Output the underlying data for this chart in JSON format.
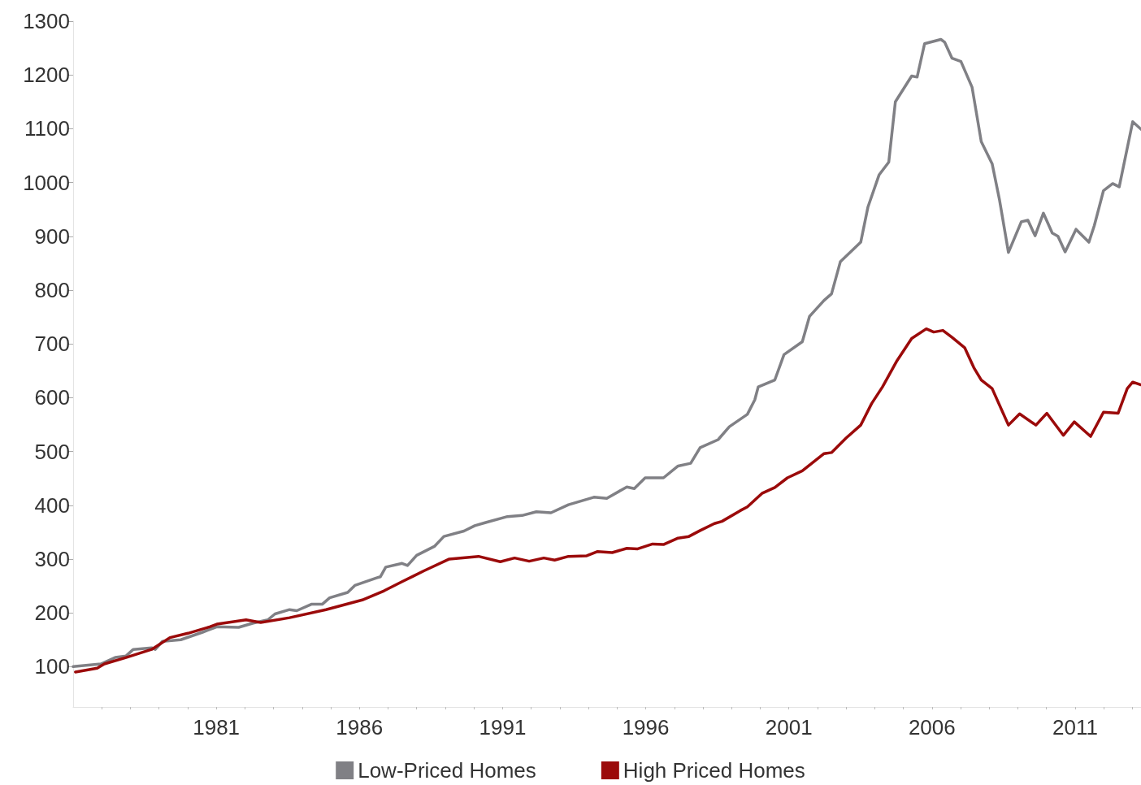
{
  "chart_data": {
    "type": "line",
    "legend": "bottom",
    "grid": false,
    "marker": "none",
    "line_style": "solid",
    "xlim": [
      1976,
      2013.3
    ],
    "ylim": [
      25,
      1300
    ],
    "yticks": [
      100,
      200,
      300,
      400,
      500,
      600,
      700,
      800,
      900,
      1000,
      1100,
      1200,
      1300
    ],
    "xticks": [
      {
        "value": 1977,
        "label": null
      },
      {
        "value": 1978,
        "label": null
      },
      {
        "value": 1979,
        "label": null
      },
      {
        "value": 1980,
        "label": null
      },
      {
        "value": 1981,
        "label": "1981"
      },
      {
        "value": 1982,
        "label": null
      },
      {
        "value": 1983,
        "label": null
      },
      {
        "value": 1984,
        "label": null
      },
      {
        "value": 1985,
        "label": null
      },
      {
        "value": 1986,
        "label": "1986"
      },
      {
        "value": 1987,
        "label": null
      },
      {
        "value": 1988,
        "label": null
      },
      {
        "value": 1989,
        "label": null
      },
      {
        "value": 1990,
        "label": null
      },
      {
        "value": 1991,
        "label": "1991"
      },
      {
        "value": 1992,
        "label": null
      },
      {
        "value": 1993,
        "label": null
      },
      {
        "value": 1994,
        "label": null
      },
      {
        "value": 1995,
        "label": null
      },
      {
        "value": 1996,
        "label": "1996"
      },
      {
        "value": 1997,
        "label": null
      },
      {
        "value": 1998,
        "label": null
      },
      {
        "value": 1999,
        "label": null
      },
      {
        "value": 2000,
        "label": null
      },
      {
        "value": 2001,
        "label": "2001"
      },
      {
        "value": 2002,
        "label": null
      },
      {
        "value": 2003,
        "label": null
      },
      {
        "value": 2004,
        "label": null
      },
      {
        "value": 2005,
        "label": null
      },
      {
        "value": 2006,
        "label": "2006"
      },
      {
        "value": 2007,
        "label": null
      },
      {
        "value": 2008,
        "label": null
      },
      {
        "value": 2009,
        "label": null
      },
      {
        "value": 2010,
        "label": null
      },
      {
        "value": 2011,
        "label": "2011"
      },
      {
        "value": 2012,
        "label": null
      },
      {
        "value": 2013,
        "label": null
      }
    ],
    "series": [
      {
        "name": "Low-Priced Homes",
        "color": "#808085",
        "x": [
          1976.0,
          1976.97,
          1977.47,
          1977.85,
          1978.1,
          1978.74,
          1978.87,
          1979.12,
          1979.76,
          1980.52,
          1981.02,
          1981.78,
          1982.29,
          1982.8,
          1983.05,
          1983.56,
          1983.81,
          1984.32,
          1984.7,
          1984.96,
          1985.59,
          1985.84,
          1986.6,
          1986.73,
          1986.92,
          1987.49,
          1987.68,
          1988.0,
          1988.63,
          1988.95,
          1989.65,
          1990.03,
          1990.41,
          1991.17,
          1991.68,
          1992.18,
          1992.69,
          1993.3,
          1994.19,
          1994.64,
          1995.34,
          1995.6,
          1995.98,
          1996.62,
          1997.13,
          1997.57,
          1997.9,
          1998.53,
          1998.92,
          1999.55,
          1999.81,
          1999.93,
          2000.51,
          2000.83,
          2001.47,
          2001.72,
          2002.23,
          2002.49,
          2002.8,
          2003.51,
          2003.76,
          2004.15,
          2004.49,
          2004.72,
          2005.29,
          2005.48,
          2005.74,
          2006.31,
          2006.44,
          2006.7,
          2007.01,
          2007.4,
          2007.72,
          2008.1,
          2008.36,
          2008.67,
          2009.12,
          2009.35,
          2009.6,
          2009.89,
          2010.2,
          2010.4,
          2010.65,
          2011.03,
          2011.48,
          2011.67,
          2011.99,
          2012.31,
          2012.54,
          2013.01,
          2013.3
        ],
        "values": [
          100,
          105,
          117,
          120,
          132,
          135,
          132,
          147,
          150,
          164,
          174,
          173,
          181,
          187,
          198,
          206,
          204,
          216,
          216,
          228,
          238,
          251,
          265,
          267,
          285,
          292,
          288,
          307,
          324,
          342,
          352,
          362,
          368,
          379,
          381,
          388,
          386,
          401,
          415,
          413,
          434,
          431,
          451,
          451,
          473,
          478,
          507,
          522,
          546,
          569,
          596,
          620,
          633,
          680,
          704,
          751,
          781,
          793,
          853,
          889,
          954,
          1014,
          1038,
          1150,
          1198,
          1196,
          1258,
          1266,
          1261,
          1231,
          1225,
          1177,
          1076,
          1035,
          967,
          870,
          927,
          930,
          901,
          943,
          906,
          900,
          871,
          913,
          889,
          920,
          985,
          998,
          992,
          1113,
          1099
        ]
      },
      {
        "name": "High Priced Homes",
        "color": "#9b0a0a",
        "x": [
          1976.08,
          1976.84,
          1977.09,
          1977.85,
          1978.74,
          1979.38,
          1980.01,
          1980.77,
          1981.02,
          1982.04,
          1982.55,
          1983.56,
          1984.83,
          1986.1,
          1986.86,
          1987.49,
          1988.25,
          1989.14,
          1990.16,
          1990.92,
          1991.42,
          1991.93,
          1992.44,
          1992.82,
          1993.3,
          1993.94,
          1994.32,
          1994.83,
          1995.34,
          1995.72,
          1996.24,
          1996.62,
          1997.13,
          1997.51,
          1997.9,
          1998.4,
          1998.66,
          1999.3,
          1999.55,
          2000.06,
          2000.51,
          2000.95,
          2001.47,
          2002.23,
          2002.49,
          2003.0,
          2003.51,
          2003.89,
          2004.27,
          2004.78,
          2005.29,
          2005.8,
          2006.06,
          2006.38,
          2006.7,
          2007.14,
          2007.46,
          2007.72,
          2008.1,
          2008.67,
          2009.06,
          2009.63,
          2010.01,
          2010.59,
          2010.97,
          2011.54,
          2011.99,
          2012.5,
          2012.82,
          2013.01,
          2013.3
        ],
        "values": [
          90,
          97,
          105,
          117,
          132,
          154,
          162,
          174,
          179,
          187,
          182,
          191,
          206,
          224,
          241,
          258,
          278,
          300,
          305,
          295,
          302,
          296,
          302,
          298,
          305,
          306,
          314,
          312,
          320,
          319,
          328,
          327,
          339,
          342,
          353,
          366,
          370,
          390,
          397,
          422,
          433,
          451,
          464,
          496,
          498,
          525,
          549,
          589,
          620,
          669,
          710,
          728,
          722,
          725,
          712,
          693,
          656,
          633,
          617,
          549,
          570,
          549,
          571,
          530,
          555,
          528,
          573,
          571,
          617,
          629,
          624
        ]
      }
    ]
  }
}
